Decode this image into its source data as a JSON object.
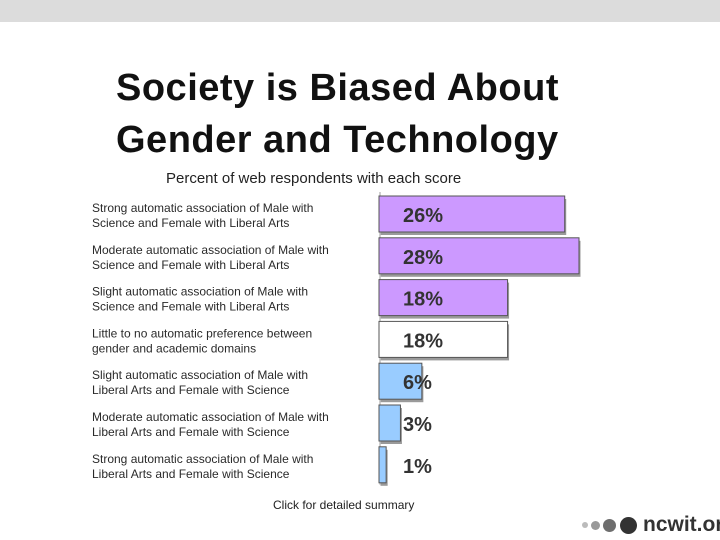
{
  "slide": {
    "title_line1": "Society is Biased About",
    "title_line2": "Gender and Technology",
    "link_text": "Click for detailed summary",
    "logo_text": "ncwit.org"
  },
  "chart_data": {
    "type": "bar",
    "orientation": "horizontal",
    "title": "Percent of web respondents with each score",
    "categories": [
      [
        "Strong automatic association of Male with",
        "Science and Female with Liberal Arts"
      ],
      [
        "Moderate automatic association of Male with",
        "Science and Female with Liberal Arts"
      ],
      [
        "Slight automatic association of Male with",
        "Science and Female with Liberal Arts"
      ],
      [
        "Little to no automatic preference between",
        "gender and academic domains"
      ],
      [
        "Slight automatic association of Male with",
        "Liberal Arts and Female with Science"
      ],
      [
        "Moderate automatic association of Male with",
        "Liberal Arts and Female with Science"
      ],
      [
        "Strong automatic association of Male with",
        "Liberal Arts and Female with Science"
      ]
    ],
    "values": [
      26,
      28,
      18,
      18,
      6,
      3,
      1
    ],
    "value_labels": [
      "26%",
      "28%",
      "18%",
      "18%",
      "6%",
      "3%",
      "1%"
    ],
    "bar_colors": [
      "#cc99ff",
      "#cc99ff",
      "#cc99ff",
      "#ffffff",
      "#99ccff",
      "#99ccff",
      "#99ccff"
    ],
    "xlim": [
      0,
      28
    ],
    "grid": false,
    "legend": "none"
  }
}
